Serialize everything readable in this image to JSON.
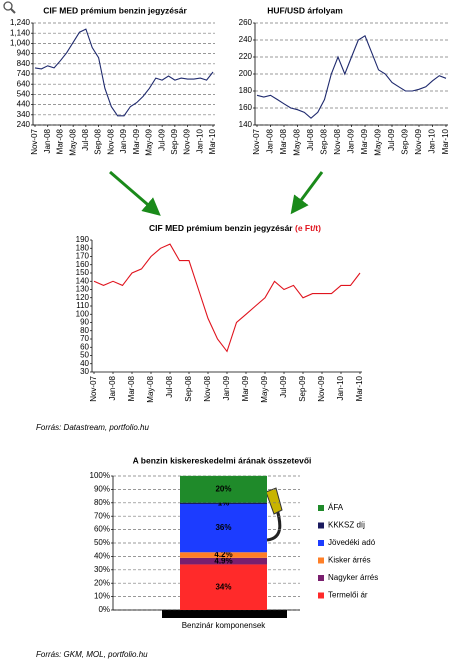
{
  "chart_data": [
    {
      "type": "line",
      "title": "CIF MED prémium benzin jegyzésár",
      "categories": [
        "Nov-07",
        null,
        "Jan-08",
        null,
        "Mar-08",
        null,
        "May-08",
        null,
        "Jul-08",
        null,
        "Sep-08",
        null,
        "Nov-08",
        null,
        "Jan-09",
        null,
        "Mar-09",
        null,
        "May-09",
        null,
        "Jul-09",
        null,
        "Sep-09",
        null,
        "Nov-09",
        null,
        "Jan-10",
        null,
        "Mar-10"
      ],
      "series": [
        {
          "color": "#1f2a6e",
          "values": [
            800,
            790,
            820,
            800,
            870,
            950,
            1050,
            1150,
            1180,
            1000,
            900,
            600,
            420,
            330,
            330,
            420,
            460,
            520,
            600,
            700,
            680,
            720,
            680,
            700,
            690,
            690,
            700,
            680,
            760
          ]
        }
      ],
      "ylim": [
        240,
        1240
      ],
      "yticks": [
        240,
        340,
        440,
        540,
        640,
        740,
        840,
        940,
        {
          "value": 1040,
          "label": "1,040"
        },
        {
          "value": 1140,
          "label": "1,140"
        },
        {
          "value": 1240,
          "label": "1,240"
        }
      ],
      "grid": true
    },
    {
      "type": "line",
      "title": "HUF/USD árfolyam",
      "categories": [
        "Nov-07",
        null,
        "Jan-08",
        null,
        "Mar-08",
        null,
        "May-08",
        null,
        "Jul-08",
        null,
        "Sep-08",
        null,
        "Nov-08",
        null,
        "Jan-09",
        null,
        "Mar-09",
        null,
        "May-09",
        null,
        "Jul-09",
        null,
        "Sep-09",
        null,
        "Nov-09",
        null,
        "Jan-10",
        null,
        "Mar-10"
      ],
      "series": [
        {
          "color": "#1f2a6e",
          "values": [
            175,
            173,
            175,
            170,
            165,
            160,
            158,
            155,
            148,
            155,
            170,
            200,
            220,
            200,
            220,
            240,
            245,
            225,
            205,
            200,
            190,
            185,
            180,
            180,
            182,
            185,
            192,
            198,
            195
          ]
        }
      ],
      "ylim": [
        140,
        260
      ],
      "yticks": [
        140,
        160,
        180,
        200,
        220,
        240,
        260
      ],
      "grid": true
    },
    {
      "type": "line",
      "title": "CIF MED prémium benzin jegyzésár",
      "title_unit": "(e Ft/t)",
      "categories": [
        "Nov-07",
        null,
        "Jan-08",
        null,
        "Mar-08",
        null,
        "May-08",
        null,
        "Jul-08",
        null,
        "Sep-08",
        null,
        "Nov-08",
        null,
        "Jan-09",
        null,
        "Mar-09",
        null,
        "May-09",
        null,
        "Jul-09",
        null,
        "Sep-09",
        null,
        "Nov-09",
        null,
        "Jan-10",
        null,
        "Mar-10"
      ],
      "series": [
        {
          "color": "#e0141e",
          "values": [
            140,
            135,
            140,
            135,
            150,
            155,
            170,
            180,
            185,
            165,
            165,
            130,
            95,
            70,
            55,
            90,
            100,
            110,
            120,
            140,
            130,
            135,
            120,
            125,
            125,
            125,
            135,
            135,
            150
          ]
        }
      ],
      "ylim": [
        30,
        190
      ],
      "yticks": [
        30,
        40,
        50,
        60,
        70,
        80,
        90,
        100,
        110,
        120,
        130,
        140,
        150,
        160,
        170,
        180,
        190
      ],
      "grid": false,
      "source": "Forrás: Datastream, portfolio.hu"
    },
    {
      "type": "stacked_bar",
      "title": "A benzin kiskereskedelmi árának összetevői",
      "categories": [
        "Benzinár komponensek"
      ],
      "series": [
        {
          "name": "Termelői ár",
          "color": "#ff2a2a",
          "values": [
            34
          ],
          "value_labels": [
            "34%"
          ]
        },
        {
          "name": "Nagyker árrés",
          "color": "#7a1f6e",
          "values": [
            4.9
          ],
          "value_labels": [
            "4.9%"
          ]
        },
        {
          "name": "Kisker árrés",
          "color": "#ff7f27",
          "values": [
            4.2
          ],
          "value_labels": [
            "4.2%"
          ]
        },
        {
          "name": "Jövedéki adó",
          "color": "#1c3cff",
          "values": [
            36
          ],
          "value_labels": [
            "36%"
          ]
        },
        {
          "name": "KKKSZ díj",
          "color": "#1a1a5e",
          "values": [
            1
          ],
          "value_labels": [
            "1%"
          ]
        },
        {
          "name": "ÁFA",
          "color": "#1f8a2a",
          "values": [
            20
          ],
          "value_labels": [
            "20%"
          ]
        }
      ],
      "ylim": [
        0,
        100
      ],
      "yticks": [
        {
          "value": 0,
          "label": "0%"
        },
        {
          "value": 10,
          "label": "10%"
        },
        {
          "value": 20,
          "label": "20%"
        },
        {
          "value": 30,
          "label": "30%"
        },
        {
          "value": 40,
          "label": "40%"
        },
        {
          "value": 50,
          "label": "50%"
        },
        {
          "value": 60,
          "label": "60%"
        },
        {
          "value": 70,
          "label": "70%"
        },
        {
          "value": 80,
          "label": "80%"
        },
        {
          "value": 90,
          "label": "90%"
        },
        {
          "value": 100,
          "label": "100%"
        }
      ],
      "grid": true,
      "legend": "right",
      "source": "Forrás: GKM, MOL, portfolio.hu"
    }
  ]
}
